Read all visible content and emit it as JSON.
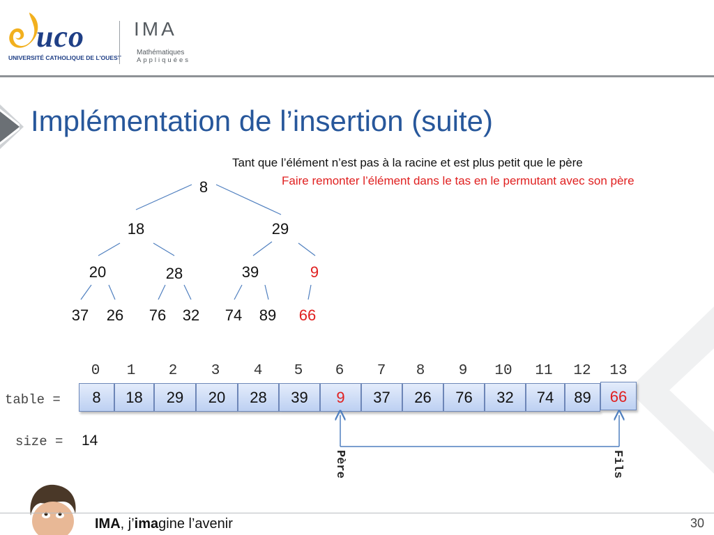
{
  "header": {
    "logo_uco": {
      "word": "uco",
      "subtitle": "UNIVERSITÉ CATHOLIQUE DE L'OUEST"
    },
    "logo_ima": {
      "word": "IMA",
      "line1": "Mathématiques",
      "line2": "Appliquées"
    }
  },
  "title": "Implémentation de l’insertion (suite)",
  "notes": {
    "line1": "Tant que l’élément n’est pas à la racine et est plus petit que le père",
    "line2": "Faire remonter l’élément dans le tas en le permutant avec son père"
  },
  "tree": {
    "nodes": [
      {
        "value": "8",
        "highlight": false
      },
      {
        "value": "18",
        "highlight": false
      },
      {
        "value": "29",
        "highlight": false
      },
      {
        "value": "20",
        "highlight": false
      },
      {
        "value": "28",
        "highlight": false
      },
      {
        "value": "39",
        "highlight": false
      },
      {
        "value": "9",
        "highlight": true
      },
      {
        "value": "37",
        "highlight": false
      },
      {
        "value": "26",
        "highlight": false
      },
      {
        "value": "76",
        "highlight": false
      },
      {
        "value": "32",
        "highlight": false
      },
      {
        "value": "74",
        "highlight": false
      },
      {
        "value": "89",
        "highlight": false
      },
      {
        "value": "66",
        "highlight": true
      }
    ]
  },
  "array": {
    "label": "table =",
    "indices": [
      "0",
      "1",
      "2",
      "3",
      "4",
      "5",
      "6",
      "7",
      "8",
      "9",
      "10",
      "11",
      "12",
      "13"
    ],
    "values": [
      "8",
      "18",
      "29",
      "20",
      "28",
      "39",
      "9",
      "37",
      "26",
      "76",
      "32",
      "74",
      "89",
      "66"
    ],
    "highlighted_indices": [
      6,
      13
    ],
    "size_label": "size =",
    "size_value": "14"
  },
  "pointers": {
    "parent_label": "Père",
    "child_label": "Fils"
  },
  "footer": {
    "brand": "IMA",
    "text_part1": ", j’",
    "text_bold": "ima",
    "text_part2": "gine l’avenir",
    "page": "30"
  },
  "colors": {
    "title": "#27579b",
    "highlight": "#e02020",
    "cell_border": "#6d87b8",
    "line": "#4f7fbf"
  }
}
